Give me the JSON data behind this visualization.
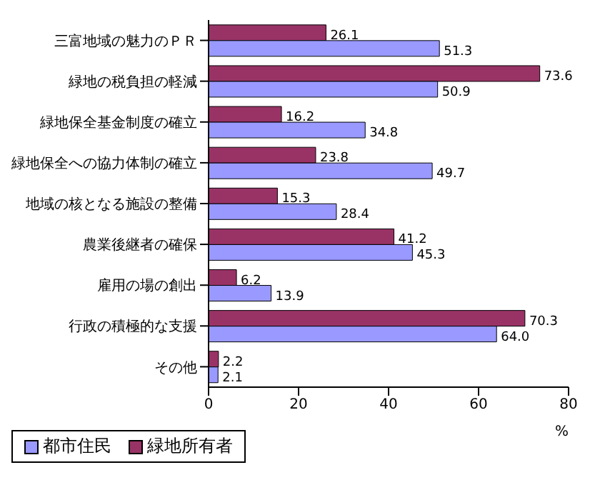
{
  "chart_data": {
    "type": "bar",
    "orientation": "horizontal",
    "xlabel": "%",
    "categories": [
      "三富地域の魅力のＰＲ",
      "緑地の税負担の軽減",
      "緑地保全基金制度の確立",
      "緑地保全への協力体制の確立",
      "地域の核となる施設の整備",
      "農業後継者の確保",
      "雇用の場の創出",
      "行政の積極的な支援",
      "その他"
    ],
    "series": [
      {
        "name": "緑地所有者",
        "color": "#993366",
        "values": [
          26.1,
          73.6,
          16.2,
          23.8,
          15.3,
          41.2,
          6.2,
          70.3,
          2.2
        ],
        "value_labels": [
          "26.1",
          "73.6",
          "16.2",
          "23.8",
          "15.3",
          "41.2",
          "6.2",
          "70.3",
          "2.2"
        ]
      },
      {
        "name": "都市住民",
        "color": "#9999ff",
        "values": [
          51.3,
          50.9,
          34.8,
          49.7,
          28.4,
          45.3,
          13.9,
          64.0,
          2.1
        ],
        "value_labels": [
          "51.3",
          "50.9",
          "34.8",
          "49.7",
          "28.4",
          "45.3",
          "13.9",
          "64.0",
          "2.1"
        ]
      }
    ],
    "xlim": [
      0,
      80
    ],
    "xticks": [
      0,
      20,
      40,
      60,
      80
    ],
    "grid": false,
    "legend": "bottom"
  }
}
